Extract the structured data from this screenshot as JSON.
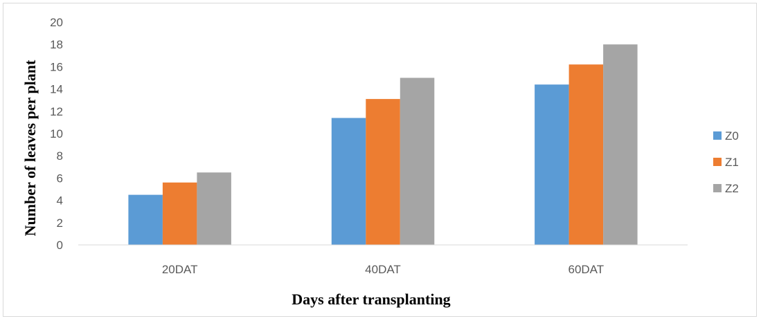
{
  "chart_data": {
    "type": "bar",
    "categories": [
      "20DAT",
      "40DAT",
      "60DAT"
    ],
    "series": [
      {
        "name": "Z0",
        "values": [
          4.5,
          11.4,
          14.4
        ],
        "color": "#5b9bd5"
      },
      {
        "name": "Z1",
        "values": [
          5.6,
          13.1,
          16.2
        ],
        "color": "#ed7d31"
      },
      {
        "name": "Z2",
        "values": [
          6.5,
          15.0,
          18.0
        ],
        "color": "#a5a5a5"
      }
    ],
    "xlabel": "Days after transplanting",
    "ylabel": "Number of leaves per plant",
    "ylim": [
      0,
      20
    ],
    "yticks": [
      "0",
      "2",
      "4",
      "6",
      "8",
      "10",
      "12",
      "14",
      "16",
      "18",
      "20"
    ],
    "grid": false,
    "legend_position": "right"
  }
}
